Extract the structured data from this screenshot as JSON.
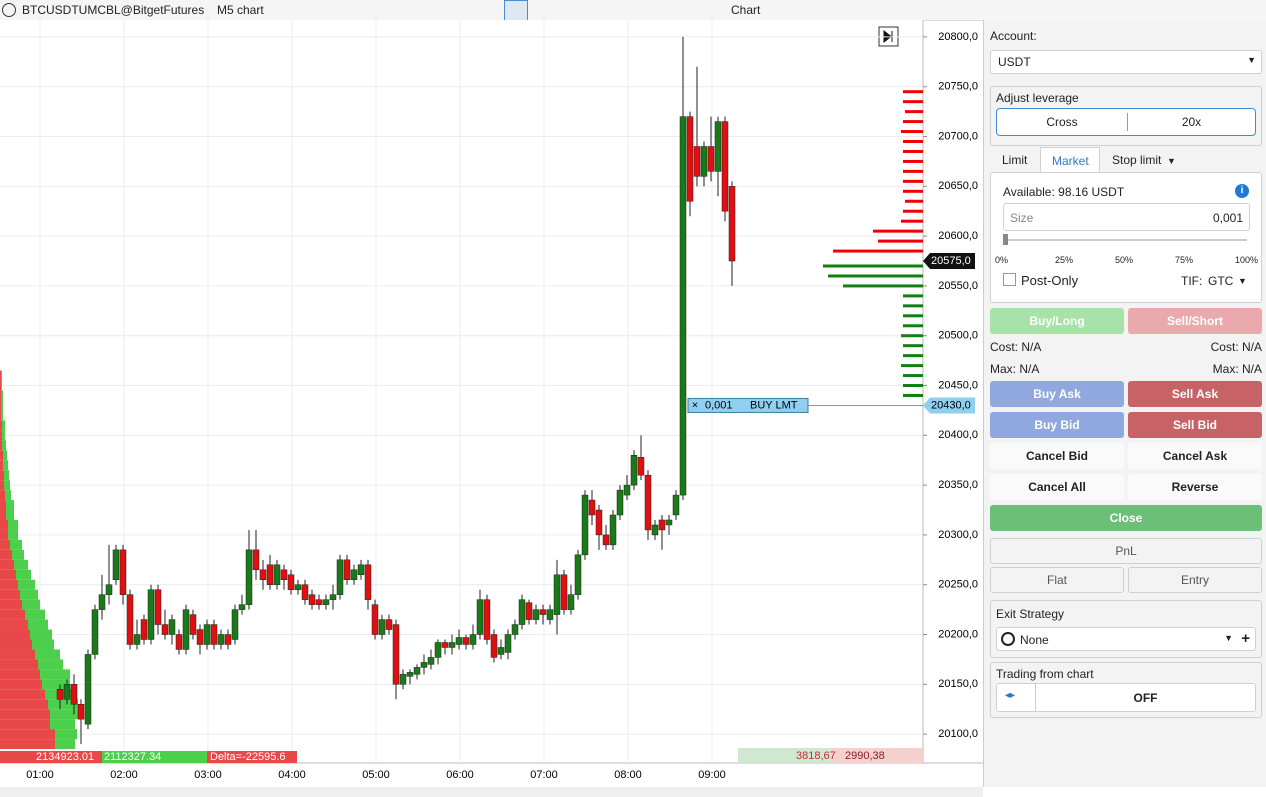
{
  "toolbar": {
    "symbol": "BTCUSDTUMCBL@BitgetFutures",
    "timeframe": "M5 chart",
    "window_title": "Chart"
  },
  "chart_data": {
    "type": "candlestick",
    "up_color": "#1a7a1a",
    "down_color": "#e01010",
    "ylim": [
      20071,
      20817
    ],
    "yticks": [
      {
        "value": 20800,
        "label": "20800,0"
      },
      {
        "value": 20750,
        "label": "20750,0"
      },
      {
        "value": 20700,
        "label": "20700,0"
      },
      {
        "value": 20650,
        "label": "20650,0"
      },
      {
        "value": 20600,
        "label": "20600,0"
      },
      {
        "value": 20550,
        "label": "20550,0"
      },
      {
        "value": 20500,
        "label": "20500,0"
      },
      {
        "value": 20450,
        "label": "20450,0"
      },
      {
        "value": 20400,
        "label": "20400,0"
      },
      {
        "value": 20350,
        "label": "20350,0"
      },
      {
        "value": 20300,
        "label": "20300,0"
      },
      {
        "value": 20250,
        "label": "20250,0"
      },
      {
        "value": 20200,
        "label": "20200,0"
      },
      {
        "value": 20150,
        "label": "20150,0"
      },
      {
        "value": 20100,
        "label": "20100,0"
      }
    ],
    "time_labels": [
      "01:00",
      "02:00",
      "03:00",
      "04:00",
      "05:00",
      "06:00",
      "07:00",
      "08:00",
      "09:00"
    ],
    "grid": true,
    "open": [
      20145,
      20135,
      20150,
      20130,
      20110,
      20180,
      20225,
      20240,
      20255,
      20285,
      20240,
      20190,
      20215,
      20195,
      20245,
      20210,
      20200,
      20200,
      20185,
      20220,
      20205,
      20190,
      20210,
      20190,
      20200,
      20195,
      20225,
      20230,
      20285,
      20265,
      20270,
      20250,
      20265,
      20260,
      20245,
      20250,
      20240,
      20235,
      20230,
      20235,
      20240,
      20275,
      20255,
      20260,
      20270,
      20230,
      20200,
      20215,
      20210,
      20150,
      20158,
      20160,
      20167,
      20170,
      20177,
      20192,
      20187,
      20190,
      20197,
      20190,
      20200,
      20235,
      20200,
      20180,
      20182,
      20200,
      20210,
      20232,
      20215,
      20225,
      20215,
      20220,
      20260,
      20225,
      20240,
      20280,
      20335,
      20325,
      20300,
      20290,
      20320,
      20340,
      20350,
      20378,
      20360,
      20300,
      20315,
      20310,
      20320,
      20340,
      20720,
      20690,
      20660,
      20690,
      20665,
      20715,
      20650
    ],
    "high": [
      20150,
      20155,
      20160,
      20135,
      20185,
      20230,
      20260,
      20290,
      20290,
      20290,
      20245,
      20215,
      20220,
      20250,
      20250,
      20225,
      20220,
      20205,
      20230,
      20225,
      20210,
      20215,
      20215,
      20205,
      20205,
      20230,
      20240,
      20305,
      20305,
      20275,
      20280,
      20275,
      20270,
      20265,
      20255,
      20255,
      20245,
      20240,
      20240,
      20250,
      20280,
      20280,
      20270,
      20275,
      20275,
      20235,
      20220,
      20220,
      20215,
      20165,
      20165,
      20170,
      20180,
      20185,
      20195,
      20195,
      20200,
      20205,
      20200,
      20210,
      20245,
      20240,
      20205,
      20195,
      20205,
      20215,
      20240,
      20235,
      20230,
      20230,
      20230,
      20275,
      20265,
      20250,
      20285,
      20345,
      20345,
      20330,
      20310,
      20325,
      20350,
      20360,
      20385,
      20400,
      20365,
      20315,
      20320,
      20320,
      20345,
      20800,
      20725,
      20770,
      20695,
      20720,
      20720,
      20720,
      20655
    ],
    "low": [
      20125,
      20130,
      20120,
      20090,
      20105,
      20175,
      20215,
      20230,
      20250,
      20230,
      20185,
      20185,
      20190,
      20190,
      20200,
      20195,
      20190,
      20180,
      20180,
      20195,
      20180,
      20185,
      20185,
      20185,
      20185,
      20190,
      20220,
      20225,
      20255,
      20245,
      20245,
      20245,
      20245,
      20240,
      20240,
      20230,
      20225,
      20225,
      20225,
      20225,
      20235,
      20250,
      20250,
      20255,
      20225,
      20195,
      20195,
      20200,
      20135,
      20145,
      20150,
      20155,
      20160,
      20165,
      20170,
      20180,
      20180,
      20185,
      20185,
      20185,
      20195,
      20190,
      20172,
      20175,
      20175,
      20195,
      20205,
      20210,
      20210,
      20210,
      20210,
      20200,
      20220,
      20220,
      20235,
      20275,
      20310,
      20285,
      20285,
      20285,
      20315,
      20335,
      20345,
      20355,
      20295,
      20295,
      20285,
      20300,
      20315,
      20335,
      20620,
      20650,
      20650,
      20655,
      20640,
      20615,
      20550
    ],
    "close": [
      20135,
      20150,
      20130,
      20115,
      20180,
      20225,
      20240,
      20250,
      20285,
      20240,
      20190,
      20200,
      20195,
      20245,
      20210,
      20200,
      20215,
      20185,
      20225,
      20200,
      20190,
      20210,
      20190,
      20200,
      20190,
      20225,
      20230,
      20285,
      20265,
      20255,
      20250,
      20270,
      20255,
      20245,
      20250,
      20235,
      20230,
      20230,
      20235,
      20240,
      20275,
      20255,
      20265,
      20270,
      20235,
      20200,
      20215,
      20205,
      20150,
      20160,
      20162,
      20167,
      20172,
      20177,
      20192,
      20187,
      20192,
      20197,
      20190,
      20200,
      20235,
      20195,
      20177,
      20187,
      20200,
      20210,
      20235,
      20215,
      20225,
      20220,
      20225,
      20260,
      20225,
      20240,
      20280,
      20340,
      20320,
      20300,
      20290,
      20320,
      20345,
      20350,
      20380,
      20360,
      20305,
      20310,
      20305,
      20315,
      20340,
      20720,
      20635,
      20660,
      20690,
      20665,
      20715,
      20625,
      20575
    ],
    "volume_profile": {
      "sell_color": "#e84848",
      "buy_color": "#4cd04c",
      "prices": [
        20090,
        20100,
        20110,
        20120,
        20130,
        20140,
        20150,
        20160,
        20170,
        20180,
        20190,
        20200,
        20210,
        20220,
        20230,
        20240,
        20250,
        20260,
        20270,
        20280,
        20290,
        20300,
        20310,
        20320,
        20330,
        20340,
        20350,
        20360,
        20370,
        20380,
        20390,
        20400,
        20410,
        20420,
        20430,
        20440,
        20450,
        20460
      ],
      "sell": [
        55,
        55,
        50,
        50,
        48,
        45,
        42,
        40,
        38,
        35,
        32,
        30,
        28,
        25,
        22,
        20,
        18,
        16,
        14,
        12,
        10,
        8,
        8,
        6,
        6,
        5,
        4,
        4,
        3,
        3,
        2,
        2,
        2,
        1,
        1,
        1,
        1,
        1
      ],
      "buy": [
        20,
        22,
        25,
        28,
        30,
        30,
        28,
        30,
        25,
        25,
        22,
        22,
        20,
        20,
        18,
        18,
        17,
        15,
        14,
        12,
        12,
        10,
        10,
        8,
        8,
        6,
        6,
        5,
        5,
        4,
        4,
        3,
        3,
        2,
        2,
        2,
        1,
        1
      ]
    },
    "order_book": {
      "ask_color": "#f00000",
      "bid_color": "#108010",
      "ask_prices": [
        20745,
        20735,
        20725,
        20715,
        20705,
        20695,
        20685,
        20675,
        20665,
        20655,
        20645,
        20635,
        20625,
        20615,
        20605,
        20595,
        20585
      ],
      "ask_sizes": [
        20,
        20,
        18,
        20,
        22,
        20,
        20,
        20,
        20,
        20,
        20,
        18,
        20,
        22,
        50,
        45,
        90
      ],
      "bid_prices": [
        20570,
        20560,
        20550,
        20540,
        20530,
        20520,
        20510,
        20500,
        20490,
        20480,
        20470,
        20460,
        20450,
        20440
      ],
      "bid_sizes": [
        100,
        95,
        80,
        20,
        20,
        20,
        20,
        22,
        20,
        20,
        22,
        20,
        20,
        20
      ]
    },
    "last_price": {
      "value": 20575,
      "label": "20575,0"
    },
    "order": {
      "price": {
        "value": 20430,
        "label": "20430,0"
      },
      "size": "0,001",
      "kind": "BUY LMT"
    },
    "footer": {
      "sell_volume": "2134923.01",
      "buy_volume": "2112327.34",
      "delta": "Delta=-22595.6",
      "stat_a": "3818,67",
      "stat_b": "2990,38"
    }
  },
  "panel": {
    "account_label": "Account:",
    "account": "USDT",
    "leverage_label": "Adjust leverage",
    "margin_mode": "Cross",
    "leverage": "20x",
    "tabs": [
      "Limit",
      "Market",
      "Stop limit"
    ],
    "available": "Available: 98.16 USDT",
    "size_label": "Size",
    "size": "0,001",
    "slider_marks": [
      "0%",
      "25%",
      "50%",
      "75%",
      "100%"
    ],
    "post_only": "Post-Only",
    "tif_label": "TIF:",
    "tif": "GTC",
    "buy_long": "Buy/Long",
    "sell_short": "Sell/Short",
    "cost_left": "Cost: N/A",
    "cost_right": "Cost: N/A",
    "max_left": "Max: N/A",
    "max_right": "Max: N/A",
    "buy_ask": "Buy Ask",
    "sell_ask": "Sell Ask",
    "buy_bid": "Buy Bid",
    "sell_bid": "Sell Bid",
    "cancel_bid": "Cancel Bid",
    "cancel_ask": "Cancel Ask",
    "cancel_all": "Cancel All",
    "reverse": "Reverse",
    "close": "Close",
    "pnl": "PnL",
    "flat": "Flat",
    "entry": "Entry",
    "exit_label": "Exit Strategy",
    "exit": "None",
    "tfc_label": "Trading from chart",
    "tfc": "OFF"
  }
}
